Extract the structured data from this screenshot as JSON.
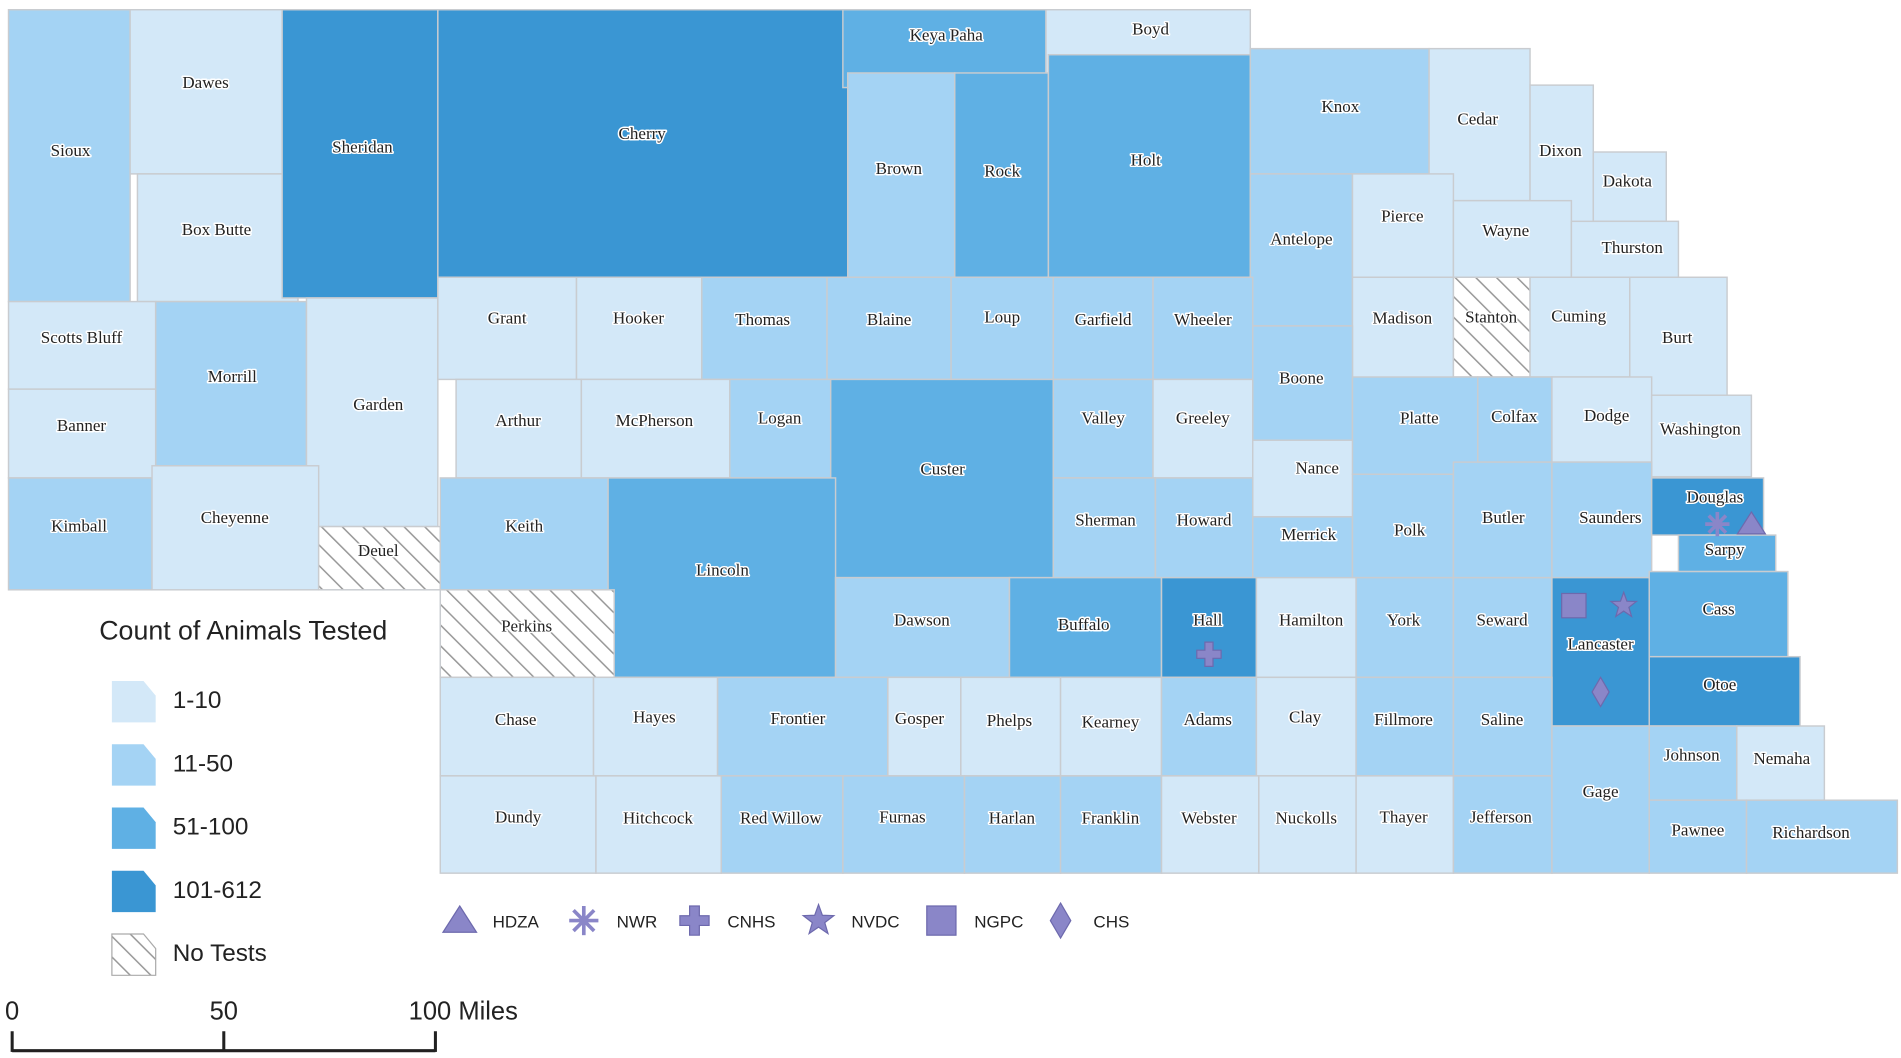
{
  "legend": {
    "title": "Count of Animals Tested",
    "classes": [
      {
        "label": "1-10",
        "color": "#d3e8f8"
      },
      {
        "label": "11-50",
        "color": "#a4d3f4"
      },
      {
        "label": "51-100",
        "color": "#5fb0e4"
      },
      {
        "label": "101-612",
        "color": "#3a96d3"
      },
      {
        "label": "No Tests",
        "color": "#ffffff",
        "hatch": true
      }
    ]
  },
  "facilities": {
    "color": "#8a86c8",
    "labels": [
      "HDZA",
      "NWR",
      "CNHS",
      "NVDC",
      "NGPC",
      "CHS"
    ]
  },
  "scale": {
    "ticks": [
      0,
      50,
      {
        "value": 100,
        "label": "100 Miles"
      }
    ]
  },
  "counties": [
    {
      "name": "Sioux",
      "class": 1
    },
    {
      "name": "Dawes",
      "class": 0
    },
    {
      "name": "Box Butte",
      "class": 0
    },
    {
      "name": "Sheridan",
      "class": 3
    },
    {
      "name": "Cherry",
      "class": 3
    },
    {
      "name": "Keya Paha",
      "class": 2
    },
    {
      "name": "Boyd",
      "class": 0
    },
    {
      "name": "Brown",
      "class": 1
    },
    {
      "name": "Rock",
      "class": 2
    },
    {
      "name": "Holt",
      "class": 2
    },
    {
      "name": "Knox",
      "class": 1
    },
    {
      "name": "Cedar",
      "class": 0
    },
    {
      "name": "Dixon",
      "class": 0
    },
    {
      "name": "Dakota",
      "class": 0
    },
    {
      "name": "Antelope",
      "class": 1
    },
    {
      "name": "Pierce",
      "class": 0
    },
    {
      "name": "Wayne",
      "class": 0
    },
    {
      "name": "Thurston",
      "class": 0
    },
    {
      "name": "Scotts Bluff",
      "class": 0
    },
    {
      "name": "Morrill",
      "class": 1
    },
    {
      "name": "Garden",
      "class": 0
    },
    {
      "name": "Grant",
      "class": 0
    },
    {
      "name": "Hooker",
      "class": 0
    },
    {
      "name": "Thomas",
      "class": 1
    },
    {
      "name": "Blaine",
      "class": 1
    },
    {
      "name": "Loup",
      "class": 1
    },
    {
      "name": "Garfield",
      "class": 1
    },
    {
      "name": "Wheeler",
      "class": 1
    },
    {
      "name": "Madison",
      "class": 0
    },
    {
      "name": "Stanton",
      "class": 4
    },
    {
      "name": "Cuming",
      "class": 0
    },
    {
      "name": "Burt",
      "class": 0
    },
    {
      "name": "Boone",
      "class": 1
    },
    {
      "name": "Banner",
      "class": 0
    },
    {
      "name": "Arthur",
      "class": 0
    },
    {
      "name": "McPherson",
      "class": 0
    },
    {
      "name": "Logan",
      "class": 1
    },
    {
      "name": "Custer",
      "class": 2
    },
    {
      "name": "Valley",
      "class": 1
    },
    {
      "name": "Greeley",
      "class": 0
    },
    {
      "name": "Nance",
      "class": 0
    },
    {
      "name": "Platte",
      "class": 1
    },
    {
      "name": "Colfax",
      "class": 1
    },
    {
      "name": "Dodge",
      "class": 0
    },
    {
      "name": "Washington",
      "class": 0
    },
    {
      "name": "Kimball",
      "class": 1
    },
    {
      "name": "Cheyenne",
      "class": 0
    },
    {
      "name": "Deuel",
      "class": 4
    },
    {
      "name": "Keith",
      "class": 1
    },
    {
      "name": "Lincoln",
      "class": 2
    },
    {
      "name": "Sherman",
      "class": 1
    },
    {
      "name": "Howard",
      "class": 1
    },
    {
      "name": "Merrick",
      "class": 1
    },
    {
      "name": "Polk",
      "class": 1
    },
    {
      "name": "Butler",
      "class": 1
    },
    {
      "name": "Saunders",
      "class": 1
    },
    {
      "name": "Douglas",
      "class": 3
    },
    {
      "name": "Sarpy",
      "class": 2
    },
    {
      "name": "Perkins",
      "class": 4
    },
    {
      "name": "Dawson",
      "class": 1
    },
    {
      "name": "Buffalo",
      "class": 2
    },
    {
      "name": "Hall",
      "class": 3
    },
    {
      "name": "Hamilton",
      "class": 0
    },
    {
      "name": "York",
      "class": 1
    },
    {
      "name": "Seward",
      "class": 1
    },
    {
      "name": "Lancaster",
      "class": 3
    },
    {
      "name": "Cass",
      "class": 2
    },
    {
      "name": "Otoe",
      "class": 3
    },
    {
      "name": "Chase",
      "class": 0
    },
    {
      "name": "Hayes",
      "class": 0
    },
    {
      "name": "Frontier",
      "class": 1
    },
    {
      "name": "Gosper",
      "class": 0
    },
    {
      "name": "Phelps",
      "class": 0
    },
    {
      "name": "Kearney",
      "class": 0
    },
    {
      "name": "Adams",
      "class": 1
    },
    {
      "name": "Clay",
      "class": 0
    },
    {
      "name": "Fillmore",
      "class": 1
    },
    {
      "name": "Saline",
      "class": 1
    },
    {
      "name": "Johnson",
      "class": 1
    },
    {
      "name": "Nemaha",
      "class": 0
    },
    {
      "name": "Dundy",
      "class": 0
    },
    {
      "name": "Hitchcock",
      "class": 0
    },
    {
      "name": "Red Willow",
      "class": 1
    },
    {
      "name": "Furnas",
      "class": 1
    },
    {
      "name": "Harlan",
      "class": 1
    },
    {
      "name": "Franklin",
      "class": 1
    },
    {
      "name": "Webster",
      "class": 0
    },
    {
      "name": "Nuckolls",
      "class": 0
    },
    {
      "name": "Thayer",
      "class": 0
    },
    {
      "name": "Jefferson",
      "class": 1
    },
    {
      "name": "Gage",
      "class": 1
    },
    {
      "name": "Pawnee",
      "class": 1
    },
    {
      "name": "Richardson",
      "class": 1
    }
  ]
}
